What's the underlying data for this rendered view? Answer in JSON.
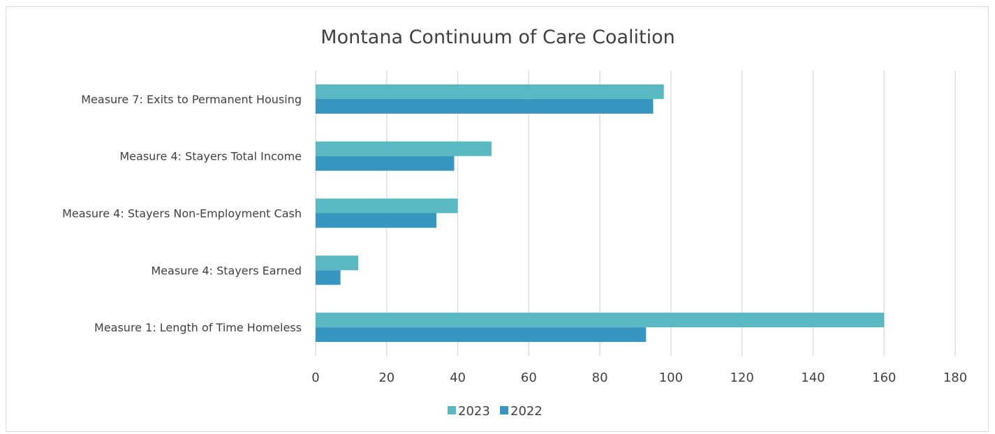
{
  "chart_data": {
    "type": "bar",
    "orientation": "horizontal",
    "title": "Montana Continuum of Care Coalition",
    "xlabel": "",
    "ylabel": "",
    "categories": [
      "Measure 7: Exits to Permanent Housing",
      "Measure 4: Stayers Total Income",
      "Measure 4: Stayers Non-Employment Cash",
      "Measure 4: Stayers Earned",
      "Measure 1: Length of Time Homeless"
    ],
    "series": [
      {
        "name": "2023",
        "color": "#5ab8c2",
        "values": [
          98,
          49.5,
          40,
          12,
          160
        ]
      },
      {
        "name": "2022",
        "color": "#3796c0",
        "values": [
          95,
          39,
          34,
          7,
          93
        ]
      }
    ],
    "xlim": [
      0,
      180
    ],
    "ticks": [
      0,
      20,
      40,
      60,
      80,
      100,
      120,
      140,
      160,
      180
    ],
    "grid": true,
    "legend_position": "bottom"
  }
}
